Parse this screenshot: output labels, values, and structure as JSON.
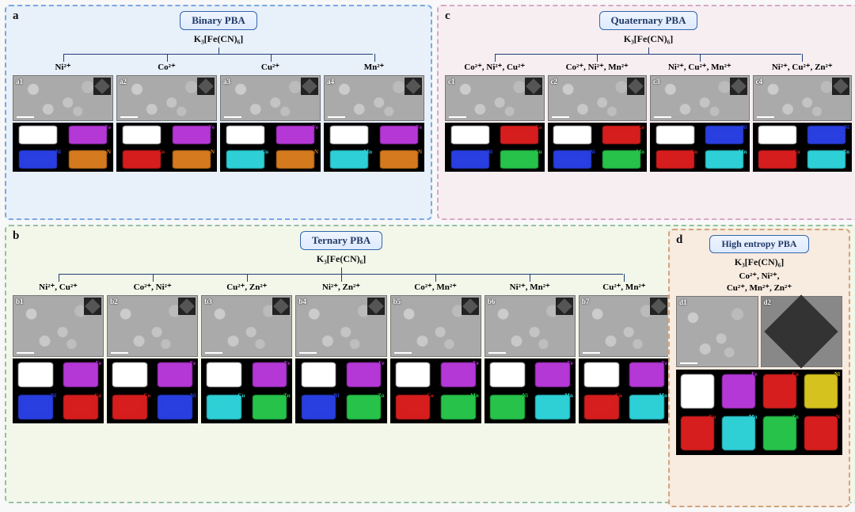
{
  "colors": {
    "panel_a_bg": "#e8f0fa",
    "panel_a_border": "#7aa8e0",
    "panel_b_bg": "#f3f7ea",
    "panel_b_border": "#96bfa4",
    "panel_c_bg": "#f7eef2",
    "panel_c_border": "#d8a8c4",
    "panel_d_bg": "#f8ebe0",
    "panel_d_border": "#d2a37a",
    "title_pill_bg": "#dfeaff",
    "title_pill_border": "#3366aa",
    "tree_line": "#1d3f72",
    "sem_bg": "#aaaaaa",
    "scalebar": "#ffffff",
    "eds_bg": "#000000"
  },
  "formula": "K₃[Fe(CN)₆]",
  "panels": {
    "a": {
      "label": "a",
      "title": "Binary PBA",
      "ions": [
        "Ni²⁺",
        "Co²⁺",
        "Cu²⁺",
        "Mn²⁺"
      ],
      "samples": [
        {
          "id": "a1",
          "eds": [
            {
              "lbl": "",
              "c": "#ffffff"
            },
            {
              "lbl": "Fe",
              "c": "#b438d6"
            },
            {
              "lbl": "Ni",
              "c": "#2a3fe0"
            },
            {
              "lbl": "N",
              "c": "#d47a1e"
            }
          ]
        },
        {
          "id": "a2",
          "eds": [
            {
              "lbl": "",
              "c": "#ffffff"
            },
            {
              "lbl": "Fe",
              "c": "#b438d6"
            },
            {
              "lbl": "Co",
              "c": "#d61e1e"
            },
            {
              "lbl": "N",
              "c": "#d47a1e"
            }
          ]
        },
        {
          "id": "a3",
          "eds": [
            {
              "lbl": "",
              "c": "#ffffff"
            },
            {
              "lbl": "Fe",
              "c": "#b438d6"
            },
            {
              "lbl": "Cu",
              "c": "#2ed0d6"
            },
            {
              "lbl": "N",
              "c": "#d47a1e"
            }
          ]
        },
        {
          "id": "a4",
          "eds": [
            {
              "lbl": "",
              "c": "#ffffff"
            },
            {
              "lbl": "Fe",
              "c": "#b438d6"
            },
            {
              "lbl": "Mn",
              "c": "#2ed0d6"
            },
            {
              "lbl": "N",
              "c": "#d47a1e"
            }
          ]
        }
      ]
    },
    "c": {
      "label": "c",
      "title": "Quaternary PBA",
      "ions": [
        "Co²⁺, Ni²⁺, Cu²⁺",
        "Co²⁺, Ni²⁺, Mn²⁺",
        "Ni²⁺, Cu²⁺, Mn²⁺",
        "Ni²⁺, Cu²⁺, Zn²⁺"
      ],
      "samples": [
        {
          "id": "c1",
          "eds": [
            {
              "lbl": "",
              "c": "#ffffff"
            },
            {
              "lbl": "Co",
              "c": "#d61e1e"
            },
            {
              "lbl": "Ni",
              "c": "#2a3fe0"
            },
            {
              "lbl": "Cu",
              "c": "#27c24a"
            }
          ]
        },
        {
          "id": "c2",
          "eds": [
            {
              "lbl": "",
              "c": "#ffffff"
            },
            {
              "lbl": "Co",
              "c": "#d61e1e"
            },
            {
              "lbl": "Ni",
              "c": "#2a3fe0"
            },
            {
              "lbl": "Mn",
              "c": "#27c24a"
            }
          ]
        },
        {
          "id": "c3",
          "eds": [
            {
              "lbl": "",
              "c": "#ffffff"
            },
            {
              "lbl": "Ni",
              "c": "#2a3fe0"
            },
            {
              "lbl": "Cu",
              "c": "#d61e1e"
            },
            {
              "lbl": "Mn",
              "c": "#2ed0d6"
            }
          ]
        },
        {
          "id": "c4",
          "eds": [
            {
              "lbl": "",
              "c": "#ffffff"
            },
            {
              "lbl": "Ni",
              "c": "#2a3fe0"
            },
            {
              "lbl": "Cu",
              "c": "#d61e1e"
            },
            {
              "lbl": "Zn",
              "c": "#2ed0d6"
            }
          ]
        }
      ]
    },
    "b": {
      "label": "b",
      "title": "Ternary PBA",
      "ions": [
        "Ni²⁺, Cu²⁺",
        "Co²⁺, Ni²⁺",
        "Cu²⁺, Zn²⁺",
        "Ni²⁺, Zn²⁺",
        "Co²⁺, Mn²⁺",
        "Ni²⁺, Mn²⁺",
        "Cu²⁺, Mn²⁺"
      ],
      "samples": [
        {
          "id": "b1",
          "eds": [
            {
              "lbl": "",
              "c": "#ffffff"
            },
            {
              "lbl": "Fe",
              "c": "#b438d6"
            },
            {
              "lbl": "Ni",
              "c": "#2a3fe0"
            },
            {
              "lbl": "Cu",
              "c": "#d61e1e"
            }
          ]
        },
        {
          "id": "b2",
          "eds": [
            {
              "lbl": "",
              "c": "#ffffff"
            },
            {
              "lbl": "Fe",
              "c": "#b438d6"
            },
            {
              "lbl": "Co",
              "c": "#d61e1e"
            },
            {
              "lbl": "Ni",
              "c": "#2a3fe0"
            }
          ]
        },
        {
          "id": "b3",
          "eds": [
            {
              "lbl": "",
              "c": "#ffffff"
            },
            {
              "lbl": "Fe",
              "c": "#b438d6"
            },
            {
              "lbl": "Cu",
              "c": "#2ed0d6"
            },
            {
              "lbl": "Zn",
              "c": "#27c24a"
            }
          ]
        },
        {
          "id": "b4",
          "eds": [
            {
              "lbl": "",
              "c": "#ffffff"
            },
            {
              "lbl": "Fe",
              "c": "#b438d6"
            },
            {
              "lbl": "Ni",
              "c": "#2a3fe0"
            },
            {
              "lbl": "Zn",
              "c": "#27c24a"
            }
          ]
        },
        {
          "id": "b5",
          "eds": [
            {
              "lbl": "",
              "c": "#ffffff"
            },
            {
              "lbl": "Fe",
              "c": "#b438d6"
            },
            {
              "lbl": "Co",
              "c": "#d61e1e"
            },
            {
              "lbl": "Mn",
              "c": "#27c24a"
            }
          ]
        },
        {
          "id": "b6",
          "eds": [
            {
              "lbl": "",
              "c": "#ffffff"
            },
            {
              "lbl": "Fe",
              "c": "#b438d6"
            },
            {
              "lbl": "Ni",
              "c": "#27c24a"
            },
            {
              "lbl": "Mn",
              "c": "#2ed0d6"
            }
          ]
        },
        {
          "id": "b7",
          "eds": [
            {
              "lbl": "",
              "c": "#ffffff"
            },
            {
              "lbl": "Fe",
              "c": "#b438d6"
            },
            {
              "lbl": "Cu",
              "c": "#d61e1e"
            },
            {
              "lbl": "Mn",
              "c": "#2ed0d6"
            }
          ]
        }
      ]
    },
    "d": {
      "label": "d",
      "title": "High entropy PBA",
      "ions_line1": "Co²⁺, Ni²⁺,",
      "ions_line2": "Cu²⁺, Mn²⁺, Zn²⁺",
      "sem_ids": [
        "d1",
        "d2"
      ],
      "eds": [
        {
          "lbl": "",
          "c": "#ffffff"
        },
        {
          "lbl": "Fe",
          "c": "#b438d6"
        },
        {
          "lbl": "Co",
          "c": "#d61e1e"
        },
        {
          "lbl": "Ni",
          "c": "#d6c21e"
        },
        {
          "lbl": "Cu",
          "c": "#d61e1e"
        },
        {
          "lbl": "Mn",
          "c": "#2ed0d6"
        },
        {
          "lbl": "Zn",
          "c": "#27c24a"
        },
        {
          "lbl": "N",
          "c": "#d61e1e"
        }
      ]
    }
  },
  "typography": {
    "panel_label_fontsize": 15,
    "title_fontsize": 13,
    "formula_fontsize": 12,
    "ion_fontsize": 11,
    "subid_fontsize": 9,
    "eds_label_fontsize": 7,
    "font_family": "Times New Roman"
  }
}
